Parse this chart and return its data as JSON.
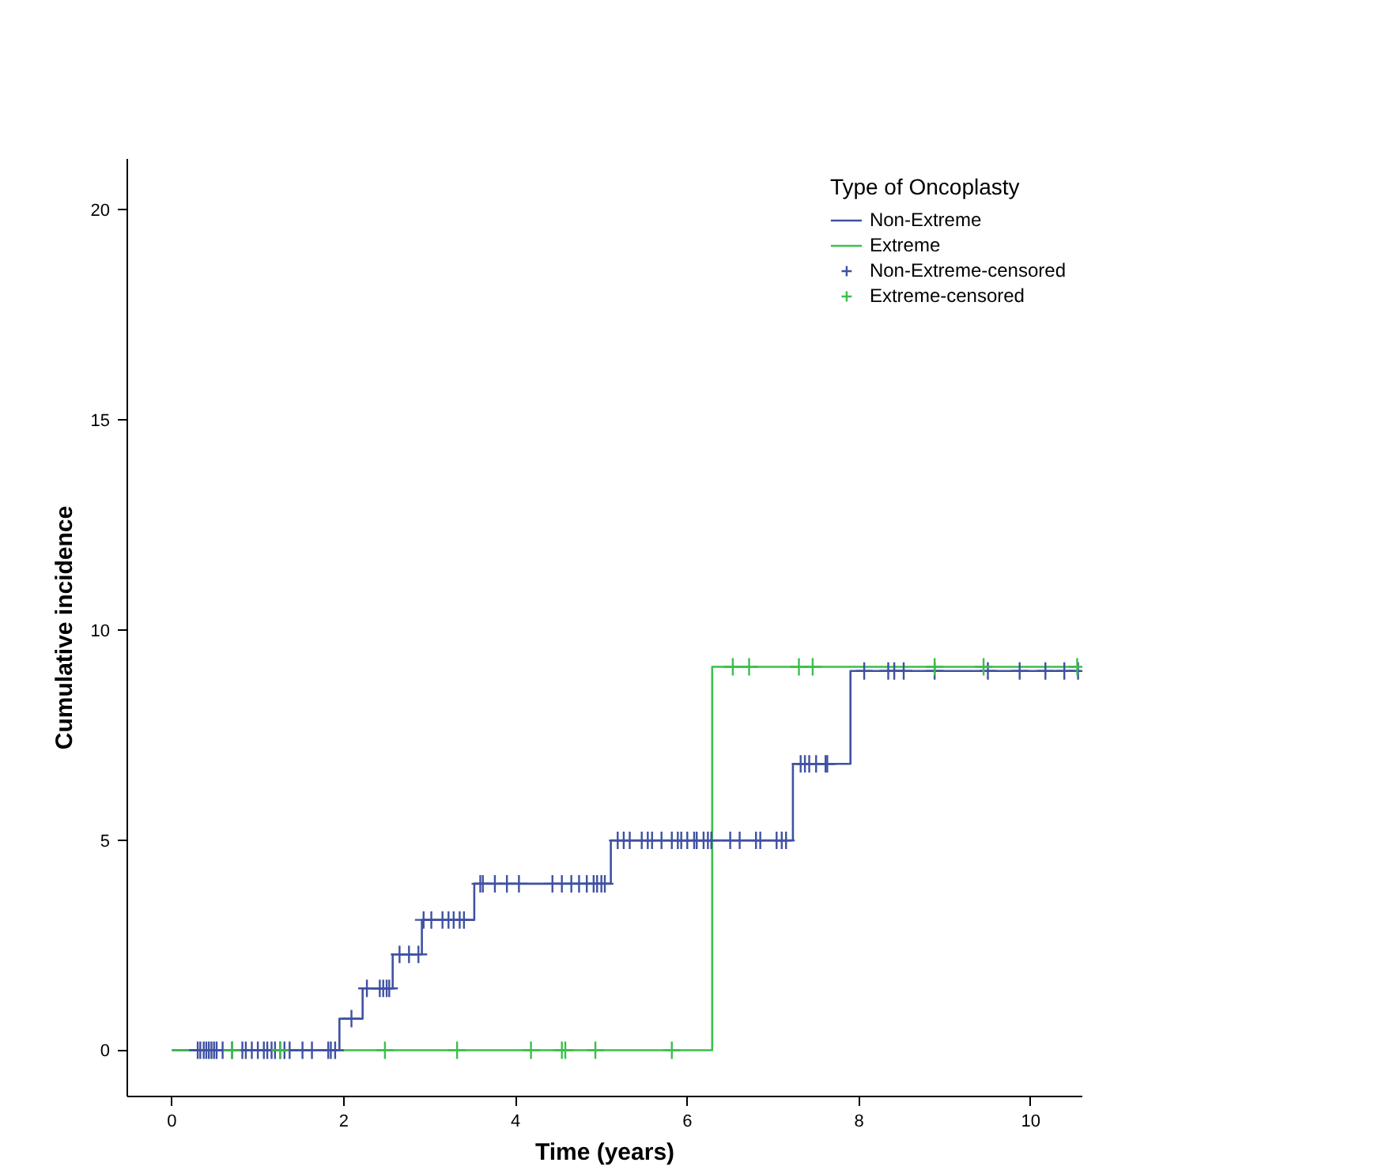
{
  "chart_data": {
    "type": "step",
    "xlabel": "Time (years)",
    "ylabel": "Cumulative incidence",
    "legend_title": "Type of Oncoplasty",
    "legend": "top right",
    "grid": false,
    "xlim": [
      -0.52,
      10.6
    ],
    "xticks": [
      0,
      2,
      4,
      6,
      8,
      10
    ],
    "ylim": [
      -1.1,
      21.2
    ],
    "yticks": [
      0,
      5,
      10,
      15,
      20
    ],
    "series": [
      {
        "name": "Non-Extreme",
        "color": "#3f51a3",
        "x": [
          0,
          1.95,
          2.22,
          2.57,
          2.91,
          3.52,
          5.11,
          7.23,
          7.9,
          10.56
        ],
        "values": [
          0,
          0.75,
          1.47,
          2.28,
          3.1,
          3.96,
          4.99,
          6.81,
          9.02,
          9.02
        ]
      },
      {
        "name": "Extreme",
        "color": "#3cbf4a",
        "x": [
          0,
          6.29,
          10.56
        ],
        "values": [
          0,
          9.12,
          9.12
        ]
      },
      {
        "name": "Non-Extreme-censored",
        "type": "scatter",
        "marker": "cross",
        "color": "#3f51a3",
        "x": [
          0.3,
          0.33,
          0.37,
          0.4,
          0.43,
          0.46,
          0.49,
          0.52,
          0.59,
          0.7,
          0.82,
          0.86,
          0.93,
          1.0,
          1.07,
          1.11,
          1.16,
          1.2,
          1.26,
          1.31,
          1.37,
          1.52,
          1.63,
          1.82,
          1.85,
          1.9,
          2.09,
          2.27,
          2.42,
          2.46,
          2.5,
          2.53,
          2.65,
          2.76,
          2.87,
          2.93,
          3.02,
          3.15,
          3.22,
          3.28,
          3.35,
          3.4,
          3.59,
          3.62,
          3.76,
          3.9,
          4.04,
          4.43,
          4.54,
          4.65,
          4.74,
          4.83,
          4.91,
          4.95,
          5.0,
          5.04,
          5.19,
          5.26,
          5.33,
          5.47,
          5.54,
          5.59,
          5.7,
          5.82,
          5.89,
          5.93,
          6.0,
          6.08,
          6.11,
          6.19,
          6.24,
          6.28,
          6.5,
          6.61,
          6.8,
          6.85,
          7.04,
          7.1,
          7.15,
          7.32,
          7.37,
          7.42,
          7.5,
          7.61,
          7.63,
          8.06,
          8.34,
          8.41,
          8.52,
          8.88,
          9.5,
          9.87,
          10.17,
          10.39,
          10.55
        ],
        "values": [
          0,
          0,
          0,
          0,
          0,
          0,
          0,
          0,
          0,
          0,
          0,
          0,
          0,
          0,
          0,
          0,
          0,
          0,
          0,
          0,
          0,
          0,
          0,
          0,
          0,
          0,
          0.75,
          1.47,
          1.47,
          1.47,
          1.47,
          1.47,
          2.28,
          2.28,
          2.28,
          3.1,
          3.1,
          3.1,
          3.1,
          3.1,
          3.1,
          3.1,
          3.96,
          3.96,
          3.96,
          3.96,
          3.96,
          3.96,
          3.96,
          3.96,
          3.96,
          3.96,
          3.96,
          3.96,
          3.96,
          3.96,
          4.99,
          4.99,
          4.99,
          4.99,
          4.99,
          4.99,
          4.99,
          4.99,
          4.99,
          4.99,
          4.99,
          4.99,
          4.99,
          4.99,
          4.99,
          4.99,
          4.99,
          4.99,
          4.99,
          4.99,
          4.99,
          4.99,
          4.99,
          6.81,
          6.81,
          6.81,
          6.81,
          6.81,
          6.81,
          9.02,
          9.02,
          9.02,
          9.02,
          9.02,
          9.02,
          9.02,
          9.02,
          9.02,
          9.02
        ]
      },
      {
        "name": "Extreme-censored",
        "type": "scatter",
        "marker": "cross",
        "color": "#3cbf4a",
        "x": [
          0.7,
          1.26,
          2.48,
          3.32,
          4.18,
          4.54,
          4.58,
          4.93,
          5.82,
          6.53,
          6.72,
          7.3,
          7.46,
          8.88,
          9.45,
          10.54
        ],
        "values": [
          0,
          0,
          0,
          0,
          0,
          0,
          0,
          0,
          0,
          9.12,
          9.12,
          9.12,
          9.12,
          9.12,
          9.12,
          9.12
        ]
      }
    ]
  }
}
